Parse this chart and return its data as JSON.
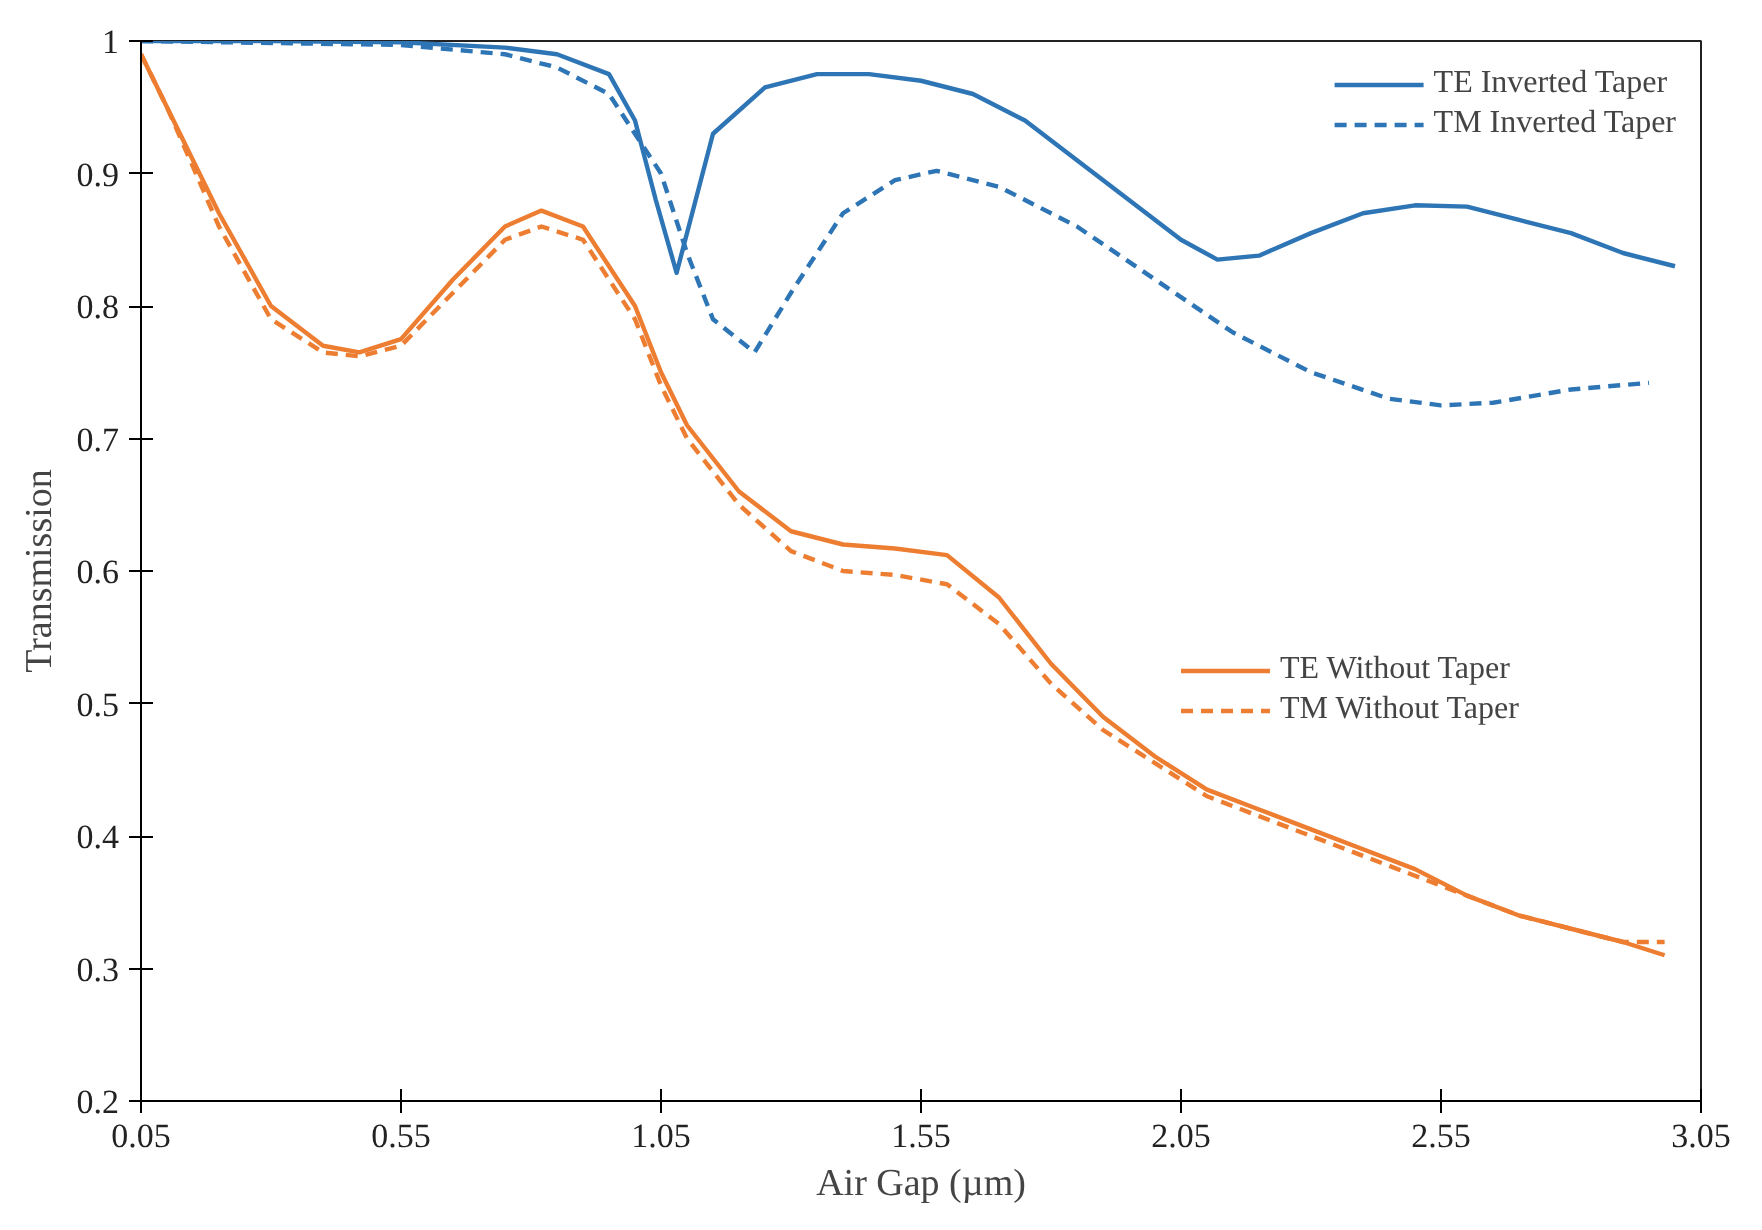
{
  "chart_data": {
    "type": "line",
    "xlabel": "Air Gap (µm)",
    "ylabel": "Transmission",
    "xlim": [
      0.05,
      3.05
    ],
    "xticks": [
      0.05,
      0.55,
      1.05,
      1.55,
      2.05,
      2.55,
      3.05
    ],
    "ylim": [
      0.2,
      1
    ],
    "yticks": [
      {
        "value": 0.2,
        "label": "0.2"
      },
      {
        "value": 0.3,
        "label": "0.3"
      },
      {
        "value": 0.4,
        "label": "0.4"
      },
      {
        "value": 0.5,
        "label": "0.5"
      },
      {
        "value": 0.6,
        "label": "0.6"
      },
      {
        "value": 0.7,
        "label": "0.7"
      },
      {
        "value": 0.8,
        "label": "0.8"
      },
      {
        "value": 0.9,
        "label": "0.9"
      },
      {
        "value": 1,
        "label": "1"
      }
    ],
    "grid": false,
    "legend": "right",
    "marker": "none",
    "series": [
      {
        "name": "TE Inverted Taper",
        "color": "#2e75b6",
        "line_style": "solid",
        "x": [
          0.05,
          0.3,
          0.55,
          0.75,
          0.85,
          0.95,
          1.0,
          1.04,
          1.08,
          1.11,
          1.15,
          1.25,
          1.35,
          1.45,
          1.55,
          1.65,
          1.75,
          1.85,
          1.95,
          2.05,
          2.12,
          2.2,
          2.3,
          2.4,
          2.5,
          2.6,
          2.7,
          2.8,
          2.9,
          3.0
        ],
        "values": [
          1.0,
          1.0,
          0.999,
          0.995,
          0.99,
          0.975,
          0.94,
          0.88,
          0.825,
          0.87,
          0.93,
          0.965,
          0.975,
          0.975,
          0.97,
          0.96,
          0.94,
          0.91,
          0.88,
          0.85,
          0.835,
          0.838,
          0.855,
          0.87,
          0.876,
          0.875,
          0.865,
          0.855,
          0.84,
          0.83
        ]
      },
      {
        "name": "TM Inverted Taper",
        "color": "#2e75b6",
        "line_style": "dashed",
        "x": [
          0.05,
          0.55,
          0.75,
          0.85,
          0.95,
          1.05,
          1.1,
          1.15,
          1.23,
          1.3,
          1.4,
          1.5,
          1.58,
          1.7,
          1.85,
          2.0,
          2.15,
          2.3,
          2.45,
          2.55,
          2.65,
          2.8,
          2.95
        ],
        "values": [
          1.0,
          0.997,
          0.99,
          0.98,
          0.96,
          0.9,
          0.84,
          0.79,
          0.765,
          0.81,
          0.87,
          0.895,
          0.902,
          0.89,
          0.86,
          0.82,
          0.78,
          0.75,
          0.73,
          0.725,
          0.727,
          0.737,
          0.742
        ]
      },
      {
        "name": "TE Without Taper",
        "color": "#ed7d31",
        "line_style": "solid",
        "x": [
          0.05,
          0.1,
          0.2,
          0.3,
          0.4,
          0.47,
          0.55,
          0.65,
          0.75,
          0.82,
          0.9,
          1.0,
          1.05,
          1.1,
          1.2,
          1.3,
          1.4,
          1.5,
          1.6,
          1.7,
          1.8,
          1.9,
          2.0,
          2.1,
          2.2,
          2.3,
          2.4,
          2.5,
          2.6,
          2.7,
          2.8,
          2.9,
          2.98
        ],
        "values": [
          0.99,
          0.95,
          0.87,
          0.8,
          0.77,
          0.765,
          0.775,
          0.82,
          0.86,
          0.872,
          0.86,
          0.8,
          0.75,
          0.71,
          0.66,
          0.63,
          0.62,
          0.617,
          0.612,
          0.58,
          0.53,
          0.49,
          0.46,
          0.435,
          0.42,
          0.405,
          0.39,
          0.375,
          0.355,
          0.34,
          0.33,
          0.32,
          0.31
        ]
      },
      {
        "name": "TM Without Taper",
        "color": "#ed7d31",
        "line_style": "dashed",
        "x": [
          0.05,
          0.1,
          0.2,
          0.3,
          0.4,
          0.47,
          0.55,
          0.65,
          0.75,
          0.82,
          0.9,
          1.0,
          1.05,
          1.1,
          1.2,
          1.3,
          1.4,
          1.5,
          1.6,
          1.7,
          1.8,
          1.9,
          2.0,
          2.1,
          2.2,
          2.3,
          2.4,
          2.5,
          2.6,
          2.7,
          2.8,
          2.9,
          2.98
        ],
        "values": [
          0.99,
          0.95,
          0.86,
          0.79,
          0.765,
          0.762,
          0.77,
          0.81,
          0.85,
          0.86,
          0.85,
          0.79,
          0.74,
          0.7,
          0.65,
          0.615,
          0.6,
          0.597,
          0.59,
          0.56,
          0.515,
          0.48,
          0.455,
          0.43,
          0.415,
          0.4,
          0.385,
          0.37,
          0.355,
          0.34,
          0.33,
          0.32,
          0.32
        ]
      }
    ]
  }
}
